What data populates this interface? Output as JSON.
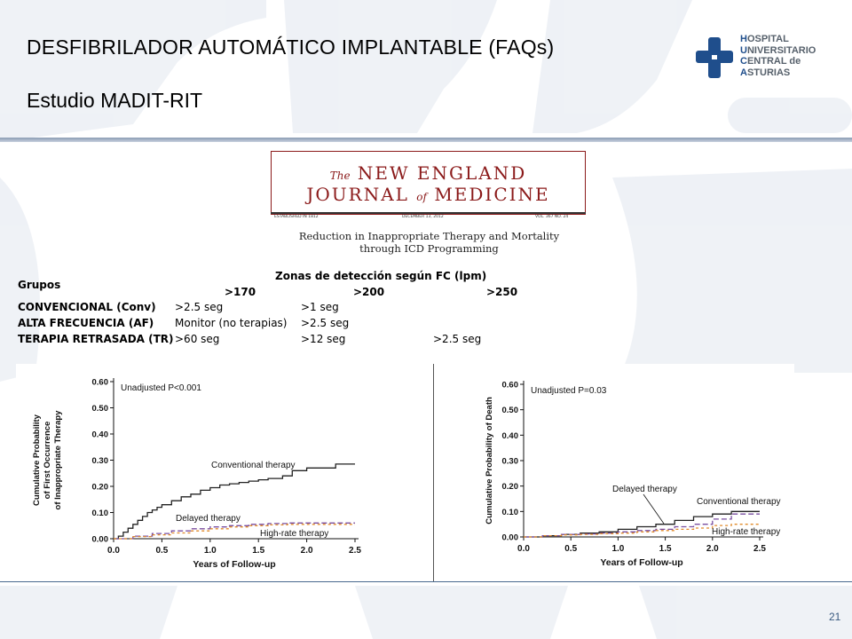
{
  "slide": {
    "title": "DESFIBRILADOR AUTOMÁTICO IMPLANTABLE (FAQs)",
    "subtitle": "Estudio MADIT-RIT",
    "page_number": "21"
  },
  "logo": {
    "lines": [
      {
        "cap": "H",
        "rest": "OSPITAL"
      },
      {
        "cap": "U",
        "rest": "NIVERSITARIO"
      },
      {
        "cap": "C",
        "rest": "ENTRAL de"
      },
      {
        "cap": "A",
        "rest": "STURIAS"
      }
    ],
    "color": "#1f4e8c"
  },
  "journal": {
    "line1_the": "The",
    "line1_main": "NEW ENGLAND",
    "line2_a": "JOURNAL",
    "line2_of": "of",
    "line2_b": "MEDICINE",
    "established": "ESTABLISHED IN 1812",
    "date": "DECEMBER 13, 2012",
    "volume": "VOL. 367   NO. 24",
    "article_line1": "Reduction in Inappropriate Therapy and Mortality",
    "article_line2": "through ICD Programming",
    "color": "#8b1a1a"
  },
  "table": {
    "zones_title": "Zonas de detección según FC (lpm)",
    "groups_header": "Grupos",
    "zone_headers": [
      ">170",
      ">200",
      ">250"
    ],
    "rows": [
      {
        "label": "CONVENCIONAL (Conv)",
        "cells": [
          ">2.5 seg",
          ">1 seg",
          ""
        ]
      },
      {
        "label": "ALTA FRECUENCIA (AF)",
        "cells": [
          "Monitor (no terapias)",
          ">2.5 seg",
          ""
        ]
      },
      {
        "label": "TERAPIA RETRASADA (TR)",
        "cells": [
          ">60 seg",
          ">12 seg",
          ">2.5 seg"
        ]
      }
    ]
  },
  "chart_data": [
    {
      "type": "line",
      "annotation": "Unadjusted P<0.001",
      "xlabel": "Years of Follow-up",
      "ylabel_line1": "Cumulative Probability",
      "ylabel_line2": "of First Occurrence",
      "ylabel_line3": "of Inappropriate Therapy",
      "xlim": [
        0,
        2.5
      ],
      "ylim": [
        0,
        0.6
      ],
      "x_ticks": [
        "0.0",
        "0.5",
        "1.0",
        "1.5",
        "2.0",
        "2.5"
      ],
      "y_ticks": [
        "0.00",
        "0.10",
        "0.20",
        "0.30",
        "0.40",
        "0.50",
        "0.60"
      ],
      "grid": false,
      "series": [
        {
          "name": "Conventional therapy",
          "color": "#222222",
          "dash": "",
          "points": [
            [
              0,
              0
            ],
            [
              0.05,
              0.01
            ],
            [
              0.1,
              0.025
            ],
            [
              0.15,
              0.04
            ],
            [
              0.2,
              0.055
            ],
            [
              0.25,
              0.07
            ],
            [
              0.3,
              0.085
            ],
            [
              0.35,
              0.1
            ],
            [
              0.4,
              0.11
            ],
            [
              0.45,
              0.12
            ],
            [
              0.5,
              0.13
            ],
            [
              0.6,
              0.145
            ],
            [
              0.7,
              0.16
            ],
            [
              0.8,
              0.17
            ],
            [
              0.9,
              0.185
            ],
            [
              1.0,
              0.195
            ],
            [
              1.1,
              0.205
            ],
            [
              1.2,
              0.21
            ],
            [
              1.3,
              0.215
            ],
            [
              1.4,
              0.22
            ],
            [
              1.5,
              0.225
            ],
            [
              1.6,
              0.23
            ],
            [
              1.75,
              0.24
            ],
            [
              1.85,
              0.26
            ],
            [
              2.0,
              0.27
            ],
            [
              2.3,
              0.285
            ],
            [
              2.5,
              0.285
            ]
          ]
        },
        {
          "name": "Delayed therapy",
          "color": "#7a4fa0",
          "dash": "6,3",
          "points": [
            [
              0,
              0
            ],
            [
              0.2,
              0.01
            ],
            [
              0.4,
              0.02
            ],
            [
              0.6,
              0.03
            ],
            [
              0.8,
              0.038
            ],
            [
              1.0,
              0.045
            ],
            [
              1.2,
              0.05
            ],
            [
              1.4,
              0.055
            ],
            [
              1.6,
              0.058
            ],
            [
              1.8,
              0.06
            ],
            [
              2.0,
              0.06
            ],
            [
              2.5,
              0.06
            ]
          ]
        },
        {
          "name": "High-rate therapy",
          "color": "#e08a2a",
          "dash": "3,3",
          "points": [
            [
              0,
              0
            ],
            [
              0.2,
              0.008
            ],
            [
              0.4,
              0.015
            ],
            [
              0.6,
              0.022
            ],
            [
              0.8,
              0.03
            ],
            [
              1.0,
              0.038
            ],
            [
              1.2,
              0.045
            ],
            [
              1.4,
              0.05
            ],
            [
              1.6,
              0.053
            ],
            [
              1.8,
              0.055
            ],
            [
              2.0,
              0.055
            ],
            [
              2.5,
              0.055
            ]
          ]
        }
      ]
    },
    {
      "type": "line",
      "annotation": "Unadjusted P=0.03",
      "xlabel": "Years of Follow-up",
      "ylabel_line1": "Cumulative Probability of Death",
      "xlim": [
        0,
        2.5
      ],
      "ylim": [
        0,
        0.6
      ],
      "x_ticks": [
        "0.0",
        "0.5",
        "1.0",
        "1.5",
        "2.0",
        "2.5"
      ],
      "y_ticks": [
        "0.00",
        "0.10",
        "0.20",
        "0.30",
        "0.40",
        "0.50",
        "0.60"
      ],
      "grid": false,
      "series": [
        {
          "name": "Conventional therapy",
          "color": "#222222",
          "dash": "",
          "points": [
            [
              0,
              0
            ],
            [
              0.2,
              0.005
            ],
            [
              0.4,
              0.01
            ],
            [
              0.6,
              0.015
            ],
            [
              0.8,
              0.02
            ],
            [
              1.0,
              0.03
            ],
            [
              1.2,
              0.04
            ],
            [
              1.4,
              0.05
            ],
            [
              1.6,
              0.065
            ],
            [
              1.8,
              0.08
            ],
            [
              2.0,
              0.09
            ],
            [
              2.2,
              0.1
            ],
            [
              2.5,
              0.1
            ]
          ]
        },
        {
          "name": "Delayed therapy",
          "color": "#7a4fa0",
          "dash": "6,3",
          "points": [
            [
              0,
              0
            ],
            [
              0.2,
              0.005
            ],
            [
              0.4,
              0.01
            ],
            [
              0.6,
              0.012
            ],
            [
              0.8,
              0.015
            ],
            [
              1.0,
              0.02
            ],
            [
              1.2,
              0.025
            ],
            [
              1.4,
              0.03
            ],
            [
              1.6,
              0.04
            ],
            [
              1.8,
              0.05
            ],
            [
              2.0,
              0.07
            ],
            [
              2.2,
              0.09
            ],
            [
              2.5,
              0.09
            ]
          ]
        },
        {
          "name": "High-rate therapy",
          "color": "#e08a2a",
          "dash": "3,3",
          "points": [
            [
              0,
              0
            ],
            [
              0.2,
              0.005
            ],
            [
              0.4,
              0.008
            ],
            [
              0.6,
              0.01
            ],
            [
              0.8,
              0.013
            ],
            [
              1.0,
              0.015
            ],
            [
              1.2,
              0.02
            ],
            [
              1.4,
              0.025
            ],
            [
              1.6,
              0.03
            ],
            [
              1.8,
              0.035
            ],
            [
              2.0,
              0.045
            ],
            [
              2.2,
              0.05
            ],
            [
              2.5,
              0.05
            ]
          ]
        }
      ]
    }
  ]
}
